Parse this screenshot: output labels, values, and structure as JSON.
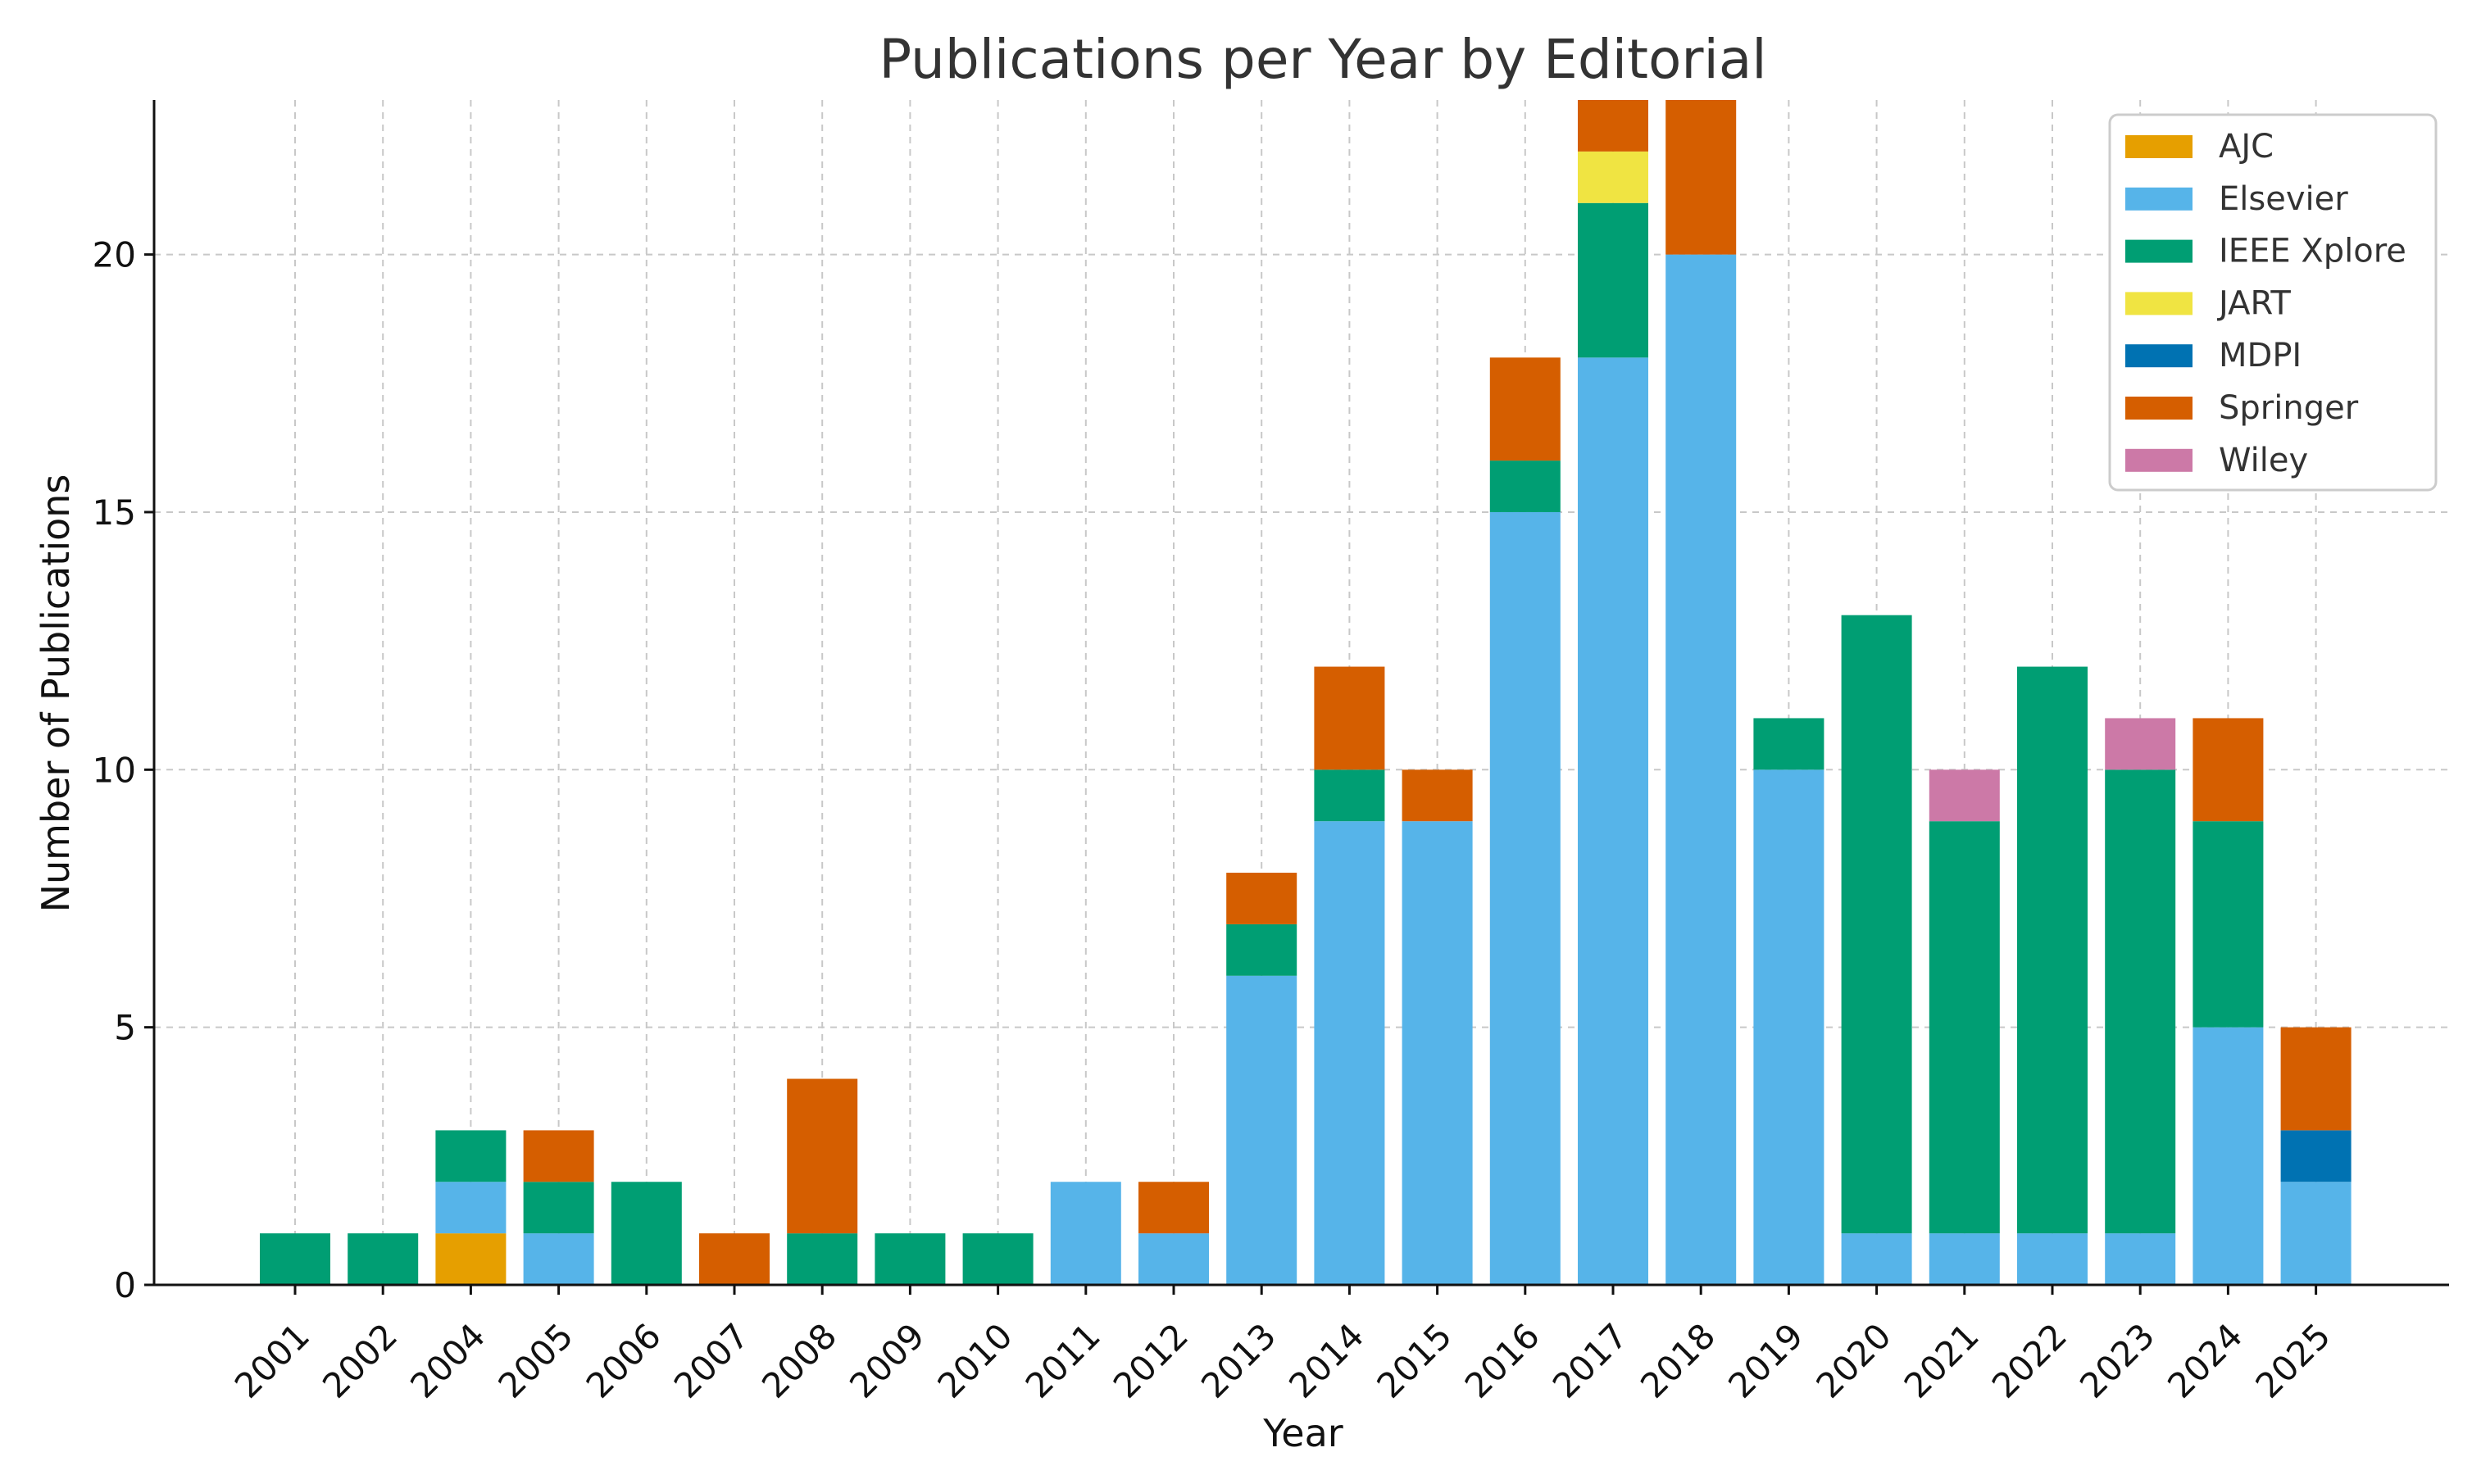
{
  "chart_data": {
    "type": "bar",
    "stacked": true,
    "title": "Publications per Year by Editorial",
    "xlabel": "Year",
    "ylabel": "Number of Publications",
    "ylim": [
      0,
      23
    ],
    "y_ticks": [
      0,
      5,
      10,
      15,
      20
    ],
    "grid": true,
    "legend_position": "top-right",
    "categories": [
      "2001",
      "2002",
      "2004",
      "2005",
      "2006",
      "2007",
      "2008",
      "2009",
      "2010",
      "2011",
      "2012",
      "2013",
      "2014",
      "2015",
      "2016",
      "2017",
      "2018",
      "2019",
      "2020",
      "2021",
      "2022",
      "2023",
      "2024",
      "2025"
    ],
    "series": [
      {
        "name": "AJC",
        "color": "#E69F00",
        "values": [
          0,
          0,
          1,
          0,
          0,
          0,
          0,
          0,
          0,
          0,
          0,
          0,
          0,
          0,
          0,
          0,
          0,
          0,
          0,
          0,
          0,
          0,
          0,
          0
        ]
      },
      {
        "name": "Elsevier",
        "color": "#56B4E9",
        "values": [
          0,
          0,
          1,
          1,
          0,
          0,
          0,
          0,
          0,
          2,
          1,
          6,
          9,
          9,
          15,
          18,
          20,
          10,
          1,
          1,
          1,
          1,
          5,
          2
        ]
      },
      {
        "name": "IEEE Xplore",
        "color": "#009E73",
        "values": [
          1,
          1,
          1,
          1,
          2,
          0,
          1,
          1,
          1,
          0,
          0,
          1,
          1,
          0,
          1,
          3,
          0,
          1,
          12,
          8,
          11,
          9,
          4,
          0
        ]
      },
      {
        "name": "JART",
        "color": "#F0E442",
        "values": [
          0,
          0,
          0,
          0,
          0,
          0,
          0,
          0,
          0,
          0,
          0,
          0,
          0,
          0,
          0,
          1,
          0,
          0,
          0,
          0,
          0,
          0,
          0,
          0
        ]
      },
      {
        "name": "MDPI",
        "color": "#0072B2",
        "values": [
          0,
          0,
          0,
          0,
          0,
          0,
          0,
          0,
          0,
          0,
          0,
          0,
          0,
          0,
          0,
          0,
          0,
          0,
          0,
          0,
          0,
          0,
          0,
          1
        ]
      },
      {
        "name": "Springer",
        "color": "#D55E00",
        "values": [
          0,
          0,
          0,
          1,
          0,
          1,
          3,
          0,
          0,
          0,
          1,
          1,
          2,
          1,
          2,
          1,
          3,
          0,
          0,
          0,
          0,
          0,
          2,
          2
        ]
      },
      {
        "name": "Wiley",
        "color": "#CC79A7",
        "values": [
          0,
          0,
          0,
          0,
          0,
          0,
          0,
          0,
          0,
          0,
          0,
          0,
          0,
          0,
          0,
          0,
          0,
          0,
          0,
          1,
          0,
          1,
          0,
          0
        ]
      }
    ]
  }
}
